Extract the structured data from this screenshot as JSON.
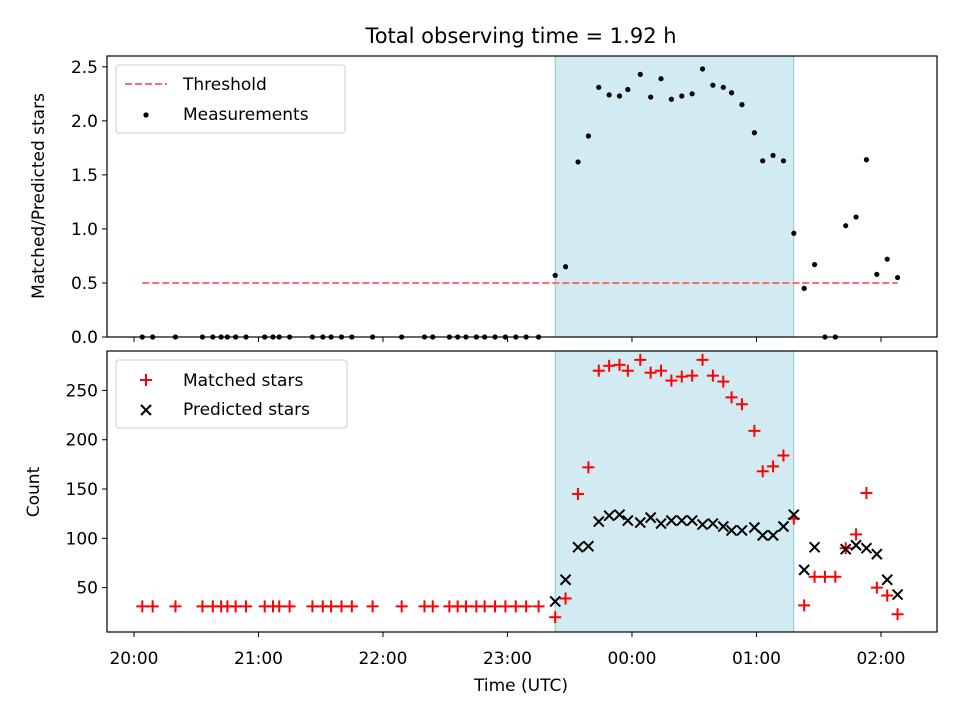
{
  "title": "Total observing time = 1.92 h",
  "chart_data": [
    {
      "type": "scatter",
      "ylabel": "Matched/Predicted stars",
      "xlim_hours": [
        19.7833,
        26.45
      ],
      "ylim": [
        0,
        2.6
      ],
      "yticks": [
        "0.0",
        "0.5",
        "1.0",
        "1.5",
        "2.0",
        "2.5"
      ],
      "yticks_values": [
        0,
        0.5,
        1.0,
        1.5,
        2.0,
        2.5
      ],
      "legend_position": "upper-left",
      "observing_window_hours": [
        23.3833,
        25.3
      ],
      "observing_window_color": "#add8e6",
      "threshold": {
        "name": "Threshold",
        "x_hours": [
          20.0667,
          26.1333
        ],
        "y": 0.5,
        "color": "#ff6b6b"
      },
      "measurements": {
        "name": "Measurements",
        "color": "#000000",
        "x_hours": [
          20.0667,
          20.15,
          20.3333,
          20.55,
          20.6333,
          20.7,
          20.75,
          20.8167,
          20.9,
          21.05,
          21.1167,
          21.1667,
          21.25,
          21.4333,
          21.5167,
          21.5833,
          21.6667,
          21.75,
          21.9167,
          22.15,
          22.3333,
          22.4,
          22.5333,
          22.6,
          22.6667,
          22.75,
          22.8167,
          22.9,
          22.9833,
          23.0667,
          23.15,
          23.25,
          23.3833,
          23.4667,
          23.5667,
          23.65,
          23.7333,
          23.8167,
          23.9,
          23.9667,
          24.0667,
          24.15,
          24.2333,
          24.3167,
          24.4,
          24.4833,
          24.5667,
          24.65,
          24.7333,
          24.8,
          24.8833,
          24.9833,
          25.05,
          25.1333,
          25.2167,
          25.3,
          25.3833,
          25.4667,
          25.55,
          25.6333,
          25.7167,
          25.8,
          25.8833,
          25.9667,
          26.05,
          26.1333
        ],
        "y": [
          0,
          0,
          0,
          0,
          0,
          0,
          0,
          0,
          0,
          0,
          0,
          0,
          0,
          0,
          0,
          0,
          0,
          0,
          0,
          0,
          0,
          0,
          0,
          0,
          0,
          0,
          0,
          0,
          0,
          0,
          0,
          0,
          0.57,
          0.65,
          1.62,
          1.86,
          2.31,
          2.24,
          2.23,
          2.29,
          2.43,
          2.22,
          2.39,
          2.2,
          2.23,
          2.25,
          2.48,
          2.33,
          2.31,
          2.26,
          2.15,
          1.89,
          1.63,
          1.68,
          1.63,
          0.96,
          0.45,
          0.67,
          0,
          0,
          1.03,
          1.11,
          1.64,
          0.58,
          0.72,
          0.55
        ]
      }
    },
    {
      "type": "scatter",
      "ylabel": "Count",
      "xlabel": "Time (UTC)",
      "xlim_hours": [
        19.7833,
        26.45
      ],
      "ylim": [
        5,
        290
      ],
      "yticks": [
        "50",
        "100",
        "150",
        "200",
        "250"
      ],
      "yticks_values": [
        50,
        100,
        150,
        200,
        250
      ],
      "xticks": [
        "20:00",
        "21:00",
        "22:00",
        "23:00",
        "00:00",
        "01:00",
        "02:00"
      ],
      "xticks_hours": [
        20,
        21,
        22,
        23,
        24,
        25,
        26
      ],
      "legend_position": "upper-left",
      "observing_window_hours": [
        23.3833,
        25.3
      ],
      "observing_window_color": "#add8e6",
      "matched": {
        "name": "Matched stars",
        "color": "#ff0000",
        "x_hours": [
          20.0667,
          20.15,
          20.3333,
          20.55,
          20.6333,
          20.7,
          20.75,
          20.8167,
          20.9,
          21.05,
          21.1167,
          21.1667,
          21.25,
          21.4333,
          21.5167,
          21.5833,
          21.6667,
          21.75,
          21.9167,
          22.15,
          22.3333,
          22.4,
          22.5333,
          22.6,
          22.6667,
          22.75,
          22.8167,
          22.9,
          22.9833,
          23.0667,
          23.15,
          23.25,
          23.3833,
          23.4667,
          23.5667,
          23.65,
          23.7333,
          23.8167,
          23.9,
          23.9667,
          24.0667,
          24.15,
          24.2333,
          24.3167,
          24.4,
          24.4833,
          24.5667,
          24.65,
          24.7333,
          24.8,
          24.8833,
          24.9833,
          25.05,
          25.1333,
          25.2167,
          25.3,
          25.3833,
          25.4667,
          25.55,
          25.6333,
          25.7167,
          25.8,
          25.8833,
          25.9667,
          26.05,
          26.1333
        ],
        "y": [
          31,
          31,
          31,
          31,
          31,
          31,
          31,
          31,
          31,
          31,
          31,
          31,
          31,
          31,
          31,
          31,
          31,
          31,
          31,
          31,
          31,
          31,
          31,
          31,
          31,
          31,
          31,
          31,
          31,
          31,
          31,
          31,
          20,
          39,
          145,
          172,
          270,
          275,
          276,
          270,
          281,
          268,
          270,
          260,
          264,
          265,
          281,
          265,
          259,
          243,
          236,
          209,
          168,
          173,
          184,
          120,
          32,
          61,
          61,
          61,
          90,
          104,
          146,
          50,
          42,
          23
        ]
      },
      "predicted": {
        "name": "Predicted stars",
        "color": "#000000",
        "x_hours": [
          23.3833,
          23.4667,
          23.5667,
          23.65,
          23.7333,
          23.8167,
          23.9,
          23.9667,
          24.0667,
          24.15,
          24.2333,
          24.3167,
          24.4,
          24.4833,
          24.5667,
          24.65,
          24.7333,
          24.8,
          24.8833,
          24.9833,
          25.05,
          25.1333,
          25.2167,
          25.3,
          25.3833,
          25.4667,
          25.7167,
          25.8,
          25.8833,
          25.9667,
          26.05,
          26.1333
        ],
        "y": [
          36,
          58,
          91,
          92,
          117,
          123,
          124,
          118,
          116,
          121,
          115,
          118,
          118,
          118,
          114,
          115,
          112,
          108,
          108,
          111,
          103,
          103,
          112,
          124,
          68,
          91,
          89,
          93,
          90,
          84,
          58,
          43
        ]
      }
    }
  ]
}
